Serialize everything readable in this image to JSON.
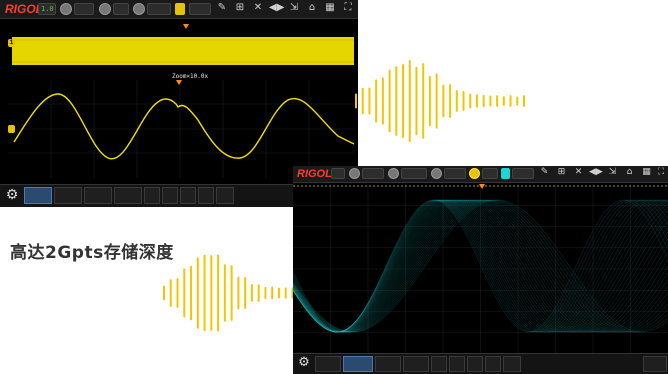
{
  "headline": "高达2Gpts存储深度",
  "scope1": {
    "brand": "RIGOL",
    "channel_badge": "1.0",
    "zoom_label": "Zoom×10.0x",
    "channel_marker": "1"
  },
  "scope2": {
    "brand": "RIGOL",
    "channel_badge": "1.0"
  },
  "colors": {
    "trace_yellow": "#f2e000",
    "trace_cyan": "#1fd4d4",
    "grid": "#2a2a2a",
    "marker_orange": "#ff8c1a",
    "brand_red": "#ff3b2f",
    "wave_gold": "#f5c400"
  },
  "icons": [
    "settings-icon",
    "pencil-icon",
    "ruler-icon",
    "zoom-icon",
    "measure-icon",
    "cursor-icon",
    "search-icon",
    "grid-icon",
    "expand-icon",
    "home-icon",
    "rigol-gear-icon"
  ]
}
